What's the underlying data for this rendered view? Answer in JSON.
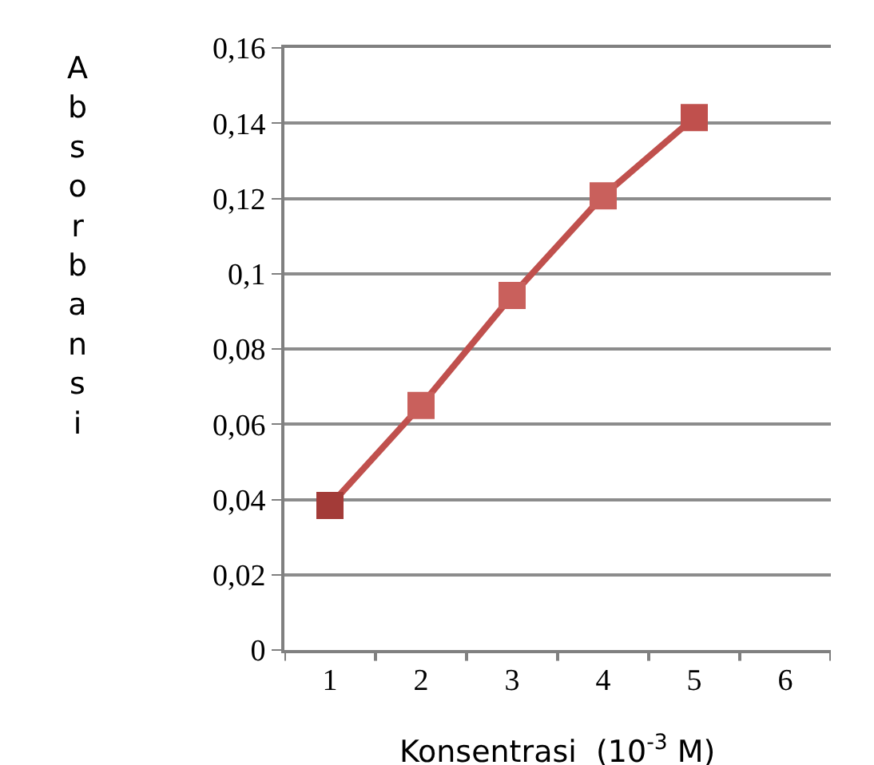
{
  "chart_data": {
    "type": "line",
    "xlabel": "Konsentrasi  (10$^{-3}$ M)",
    "ylabel": "Absorbansi",
    "categories": [
      "1",
      "2",
      "3",
      "4",
      "5",
      "6"
    ],
    "series": [
      {
        "color": "#c0504d",
        "colors": [
          "#a33b38",
          "#c9605c",
          "#c9605c",
          "#c9605c",
          "#c0504d",
          null
        ],
        "values": [
          0.0384,
          0.065,
          0.0942,
          0.1207,
          0.1415,
          null
        ]
      }
    ],
    "ylim": [
      0,
      0.16
    ],
    "yticks": [
      0,
      {
        "value": 0.02,
        "label": "0,02"
      },
      {
        "value": 0.04,
        "label": "0,04"
      },
      {
        "value": 0.06,
        "label": "0,06"
      },
      {
        "value": 0.08,
        "label": "0,08"
      },
      {
        "value": 0.1,
        "label": "0,1"
      },
      {
        "value": 0.12,
        "label": "0,12"
      },
      {
        "value": 0.14,
        "label": "0,14"
      },
      {
        "value": 0.16,
        "label": "0,16"
      }
    ],
    "grid": "y",
    "marker": "square",
    "line_style": "solid"
  }
}
